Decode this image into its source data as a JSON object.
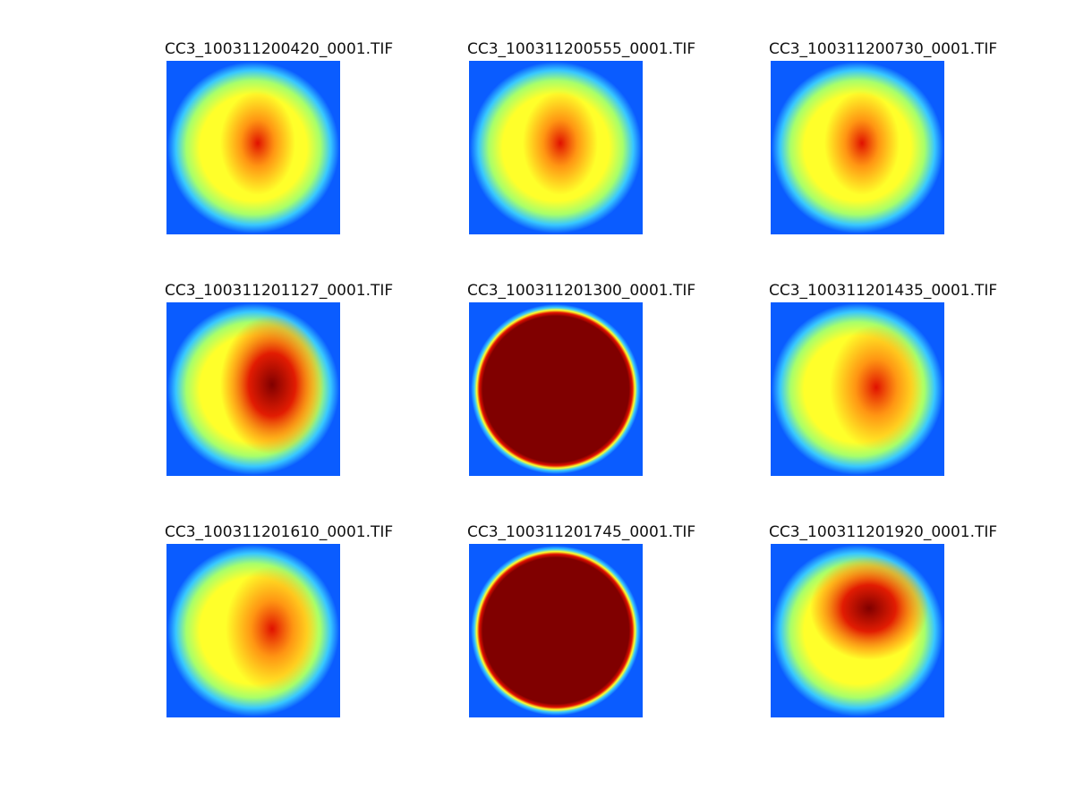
{
  "figure": {
    "background": "#ffffff",
    "panels": [
      {
        "title": "CC3_100311200420_0001.TIF",
        "style": "uniform"
      },
      {
        "title": "CC3_100311200555_0001.TIF",
        "style": "uniform"
      },
      {
        "title": "CC3_100311200730_0001.TIF",
        "style": "uniform"
      },
      {
        "title": "CC3_100311201127_0001.TIF",
        "style": "hot-right"
      },
      {
        "title": "CC3_100311201300_0001.TIF",
        "style": "saturated"
      },
      {
        "title": "CC3_100311201435_0001.TIF",
        "style": "warm-right"
      },
      {
        "title": "CC3_100311201610_0001.TIF",
        "style": "warm-right"
      },
      {
        "title": "CC3_100311201745_0001.TIF",
        "style": "saturated"
      },
      {
        "title": "CC3_100311201920_0001.TIF",
        "style": "hot-top"
      }
    ],
    "colors": {
      "field": "#0a5cff",
      "rim": "#38c8ff",
      "mid": "#a8ff6a",
      "yellow": "#ffff2a",
      "orange": "#ff8a10",
      "red": "#e01000",
      "dark_red": "#800000"
    }
  }
}
